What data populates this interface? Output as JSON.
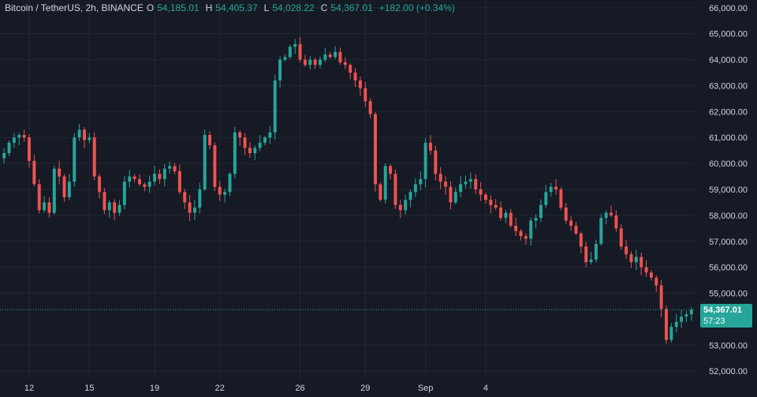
{
  "legend": {
    "symbol": "Bitcoin / TetherUS, 2h, BINANCE",
    "open_label": "O",
    "open": "54,185.01",
    "high_label": "H",
    "high": "54,405.37",
    "low_label": "L",
    "low": "54,028.22",
    "close_label": "C",
    "close": "54,367.01",
    "change": "+182.00 (+0.34%)"
  },
  "last_price": {
    "price": "54,367.01",
    "countdown": "57:23"
  },
  "colors": {
    "background": "#161a25",
    "grid": "#232733",
    "up": "#26a69a",
    "down": "#ef5350",
    "axis_text": "#d1d4dc"
  },
  "chart_data": {
    "type": "candlestick",
    "y_axis": {
      "ticks": [
        "66,000.00",
        "65,000.00",
        "64,000.00",
        "63,000.00",
        "62,000.00",
        "61,000.00",
        "60,000.00",
        "59,000.00",
        "58,000.00",
        "57,000.00",
        "56,000.00",
        "55,000.00",
        "53,000.00",
        "52,000.00"
      ],
      "ylim": [
        51700,
        66300
      ]
    },
    "x_axis": {
      "ticks": [
        "12",
        "15",
        "19",
        "22",
        "26",
        "29",
        "Sep",
        "4"
      ],
      "tick_index": [
        5,
        17,
        30,
        43,
        59,
        72,
        84,
        96
      ]
    },
    "grid": true,
    "close_series": [
      60400,
      60800,
      61000,
      61100,
      61000,
      60100,
      59200,
      58200,
      58500,
      58100,
      59800,
      59500,
      58700,
      59300,
      61000,
      61300,
      60900,
      61000,
      59500,
      58900,
      58200,
      58500,
      58100,
      58400,
      59300,
      59500,
      59400,
      59200,
      59100,
      59300,
      59600,
      59400,
      59800,
      59900,
      59700,
      58900,
      58500,
      58100,
      58300,
      59000,
      61100,
      60700,
      59100,
      58800,
      58900,
      59600,
      61200,
      61000,
      60600,
      60400,
      60600,
      60800,
      61000,
      61200,
      63200,
      64000,
      64100,
      64500,
      64600,
      64000,
      63800,
      64000,
      63800,
      64000,
      64200,
      64100,
      64300,
      63900,
      63800,
      63500,
      63200,
      62900,
      62400,
      61900,
      59200,
      58600,
      59900,
      59600,
      58400,
      58200,
      58600,
      58900,
      59200,
      59400,
      60800,
      60500,
      59600,
      59300,
      59100,
      58500,
      58900,
      59200,
      59300,
      59400,
      59000,
      58800,
      58600,
      58400,
      58300,
      57900,
      58100,
      57600,
      57400,
      57200,
      57100,
      57800,
      57900,
      58400,
      58900,
      59100,
      59000,
      58300,
      57800,
      57600,
      57300,
      56800,
      56200,
      56300,
      56900,
      57900,
      58100,
      58000,
      57500,
      56800,
      56500,
      56200,
      56400,
      56000,
      55800,
      55600,
      55300,
      54400,
      53200,
      53700,
      53900,
      54100,
      54185,
      54367
    ]
  }
}
